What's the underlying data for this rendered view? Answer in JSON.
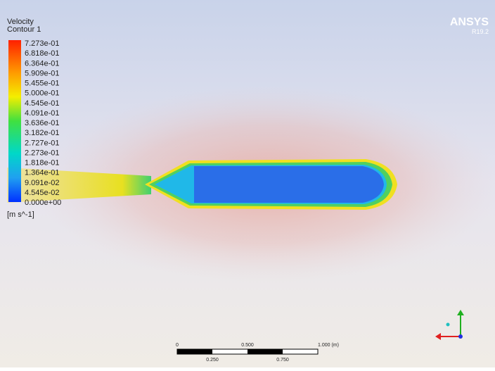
{
  "legend": {
    "title": "Velocity",
    "subtitle": "Contour 1",
    "labels": [
      "7.273e-01",
      "6.818e-01",
      "6.364e-01",
      "5.909e-01",
      "5.455e-01",
      "5.000e-01",
      "4.545e-01",
      "4.091e-01",
      "3.636e-01",
      "3.182e-01",
      "2.727e-01",
      "2.273e-01",
      "1.818e-01",
      "1.364e-01",
      "9.091e-02",
      "4.545e-02",
      "0.000e+00"
    ],
    "unit": "[m s^-1]"
  },
  "logo": {
    "name": "ANSYS",
    "version": "R19.2"
  },
  "scale_bar": {
    "top_labels": [
      "0",
      "0.500",
      "1.000 (m)"
    ],
    "bottom_labels": [
      "0.250",
      "0.750"
    ]
  }
}
